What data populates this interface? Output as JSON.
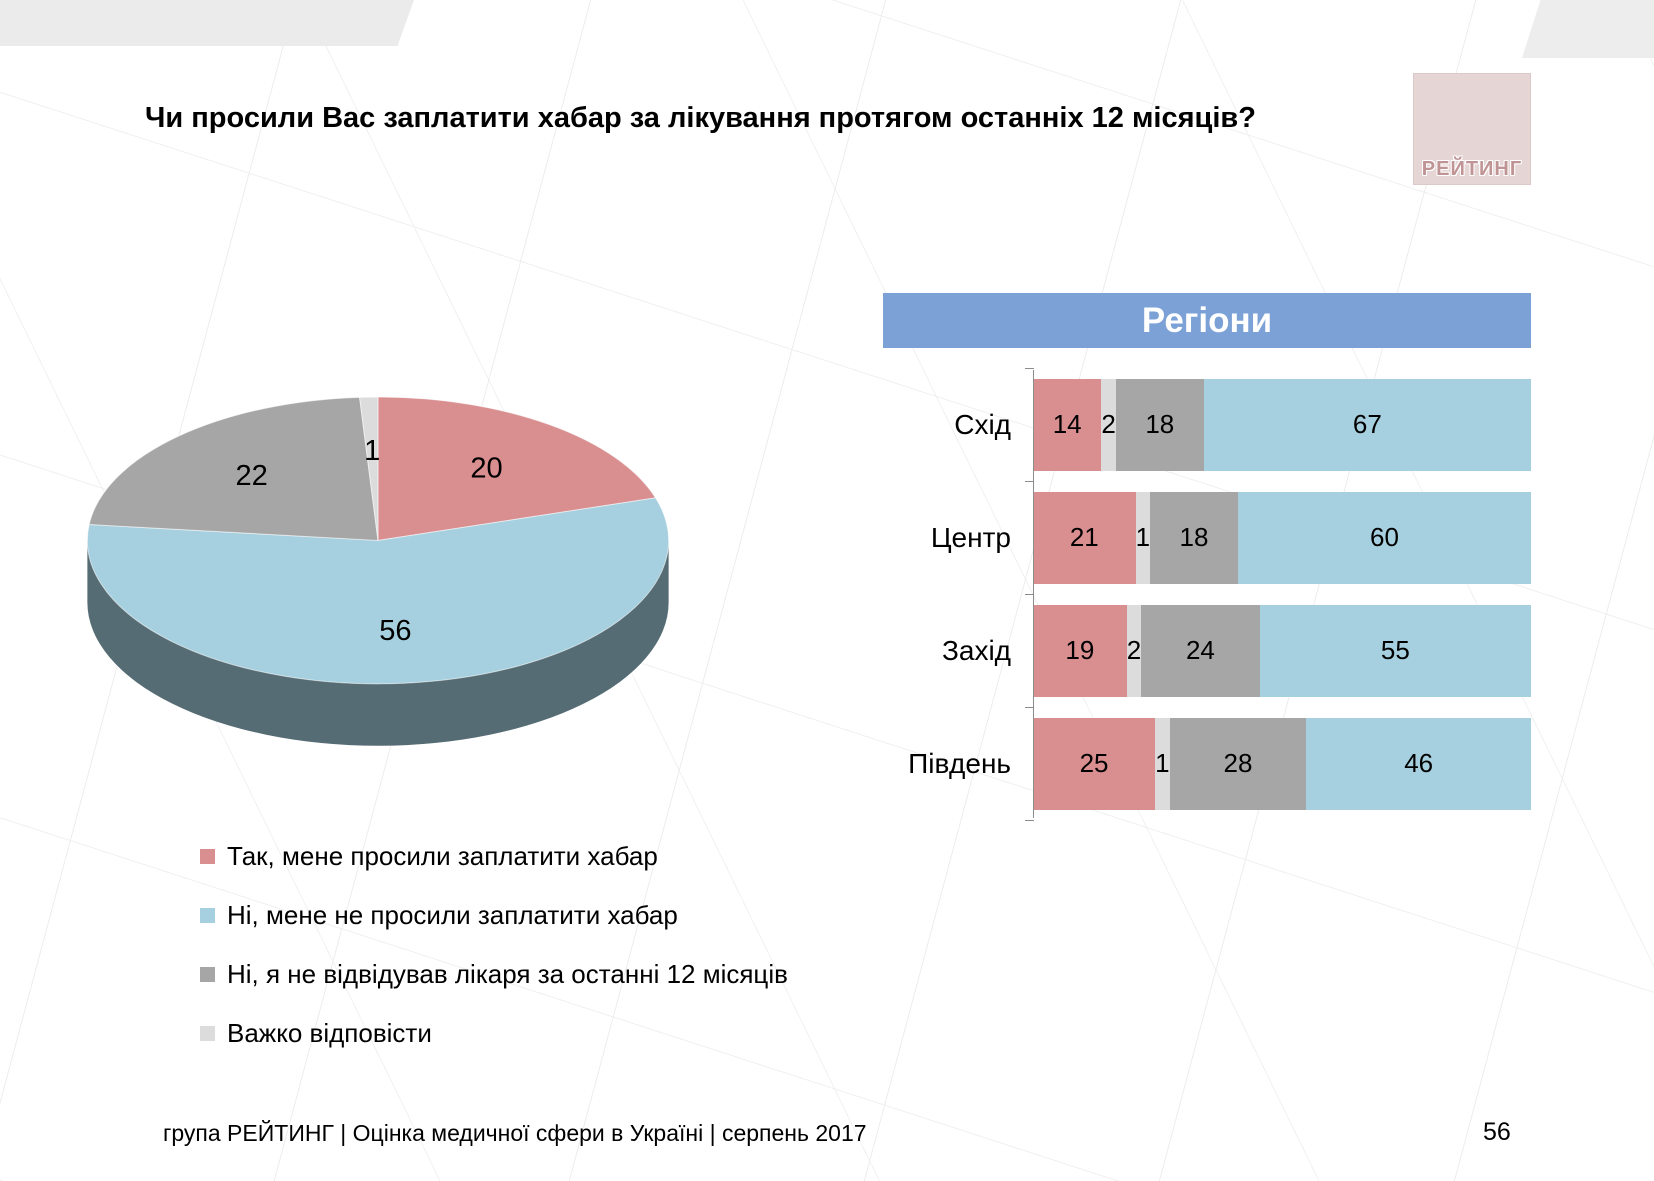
{
  "page": {
    "title": "Чи просили Вас заплатити хабар за лікування протягом останніх 12 місяців?",
    "footer": "група РЕЙТИНГ  |  Оцінка медичної сфери в Україні  |  серпень 2017",
    "page_number": "56",
    "logo_text": "РЕЙТИНГ"
  },
  "colors": {
    "yes": "#d98e90",
    "no": "#a6d0df",
    "not_visited": "#a6a6a6",
    "hard_to_say": "#dcdcdc",
    "header_bg": "#7ba1d6",
    "axis": "#8c8c8c"
  },
  "legend": [
    {
      "label": "Так, мене просили заплатити хабар",
      "color_key": "yes"
    },
    {
      "label": "Ні, мене не просили заплатити хабар",
      "color_key": "no"
    },
    {
      "label": "Ні, я не відвідував лікаря за останні 12 місяців",
      "color_key": "not_visited"
    },
    {
      "label": "Важко відповісти",
      "color_key": "hard_to_say"
    }
  ],
  "chart_data": [
    {
      "type": "pie",
      "style": "3d",
      "title": "",
      "labels": [
        "Так, мене просили заплатити хабар",
        "Ні, мене не просили заплатити хабар",
        "Ні, я не відвідував лікаря за останні 12 місяців",
        "Важко відповісти"
      ],
      "values": [
        20,
        56,
        22,
        1
      ],
      "color_keys": [
        "yes",
        "no",
        "not_visited",
        "hard_to_say"
      ],
      "start_angle_deg": 0
    },
    {
      "type": "bar",
      "orientation": "horizontal",
      "stacked": true,
      "title": "Регіони",
      "categories": [
        "Схід",
        "Центр",
        "Захід",
        "Південь"
      ],
      "series": [
        {
          "name": "Так, мене просили заплатити хабар",
          "color_key": "yes",
          "values": [
            14,
            21,
            19,
            25
          ]
        },
        {
          "name": "Важко відповісти",
          "color_key": "hard_to_say",
          "values": [
            2,
            1,
            2,
            1
          ]
        },
        {
          "name": "Ні, я не відвідував лікаря за останні 12 місяців",
          "color_key": "not_visited",
          "values": [
            18,
            18,
            24,
            28
          ]
        },
        {
          "name": "Ні, мене не просили заплатити хабар",
          "color_key": "no",
          "values": [
            67,
            60,
            55,
            46
          ]
        }
      ],
      "xlim": [
        0,
        100
      ],
      "legend_position": "bottom-left"
    }
  ]
}
